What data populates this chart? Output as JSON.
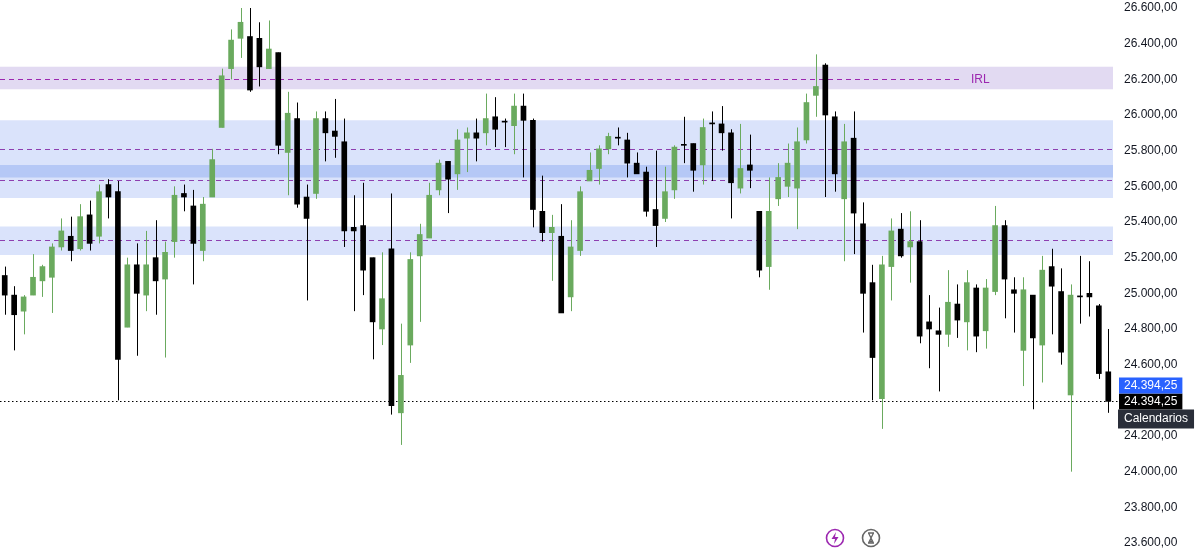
{
  "chart_data": {
    "type": "candlestick",
    "categories": [
      null,
      null,
      null,
      null,
      null,
      null,
      null,
      null,
      null,
      null,
      null,
      null,
      null,
      null,
      null,
      null,
      null,
      null,
      null,
      null,
      null,
      null,
      null,
      null,
      null,
      null,
      null,
      null,
      null,
      null,
      null,
      null,
      null,
      null,
      null,
      null,
      null,
      null,
      null,
      null,
      null,
      null,
      null,
      null,
      null,
      null,
      null,
      null,
      null,
      null,
      null,
      null,
      null,
      null,
      null,
      null,
      null,
      null,
      null,
      null,
      null,
      null,
      null,
      null,
      null,
      null,
      null,
      null,
      null,
      null,
      null,
      null,
      null,
      null,
      null,
      null,
      null,
      null,
      null,
      null,
      null,
      null,
      null,
      null,
      null,
      null,
      null,
      null,
      null,
      null,
      null,
      null,
      null,
      null,
      null,
      null,
      null,
      null,
      null,
      null,
      null,
      null,
      null,
      null,
      null,
      null,
      null,
      null,
      null,
      null,
      null,
      null,
      null,
      null,
      null,
      null,
      null,
      null
    ],
    "ohlc": [
      [
        25100,
        25150,
        24880,
        24990
      ],
      [
        24990,
        25040,
        24680,
        24880
      ],
      [
        24900,
        24990,
        24770,
        24980
      ],
      [
        24990,
        25220,
        24990,
        25090
      ],
      [
        25070,
        25160,
        24980,
        25150
      ],
      [
        25090,
        25280,
        24890,
        25260
      ],
      [
        25260,
        25420,
        25240,
        25350
      ],
      [
        25320,
        25430,
        25180,
        25240
      ],
      [
        25250,
        25500,
        25240,
        25430
      ],
      [
        25440,
        25520,
        25240,
        25280
      ],
      [
        25320,
        25610,
        25280,
        25570
      ],
      [
        25610,
        25640,
        25420,
        25540
      ],
      [
        25570,
        25630,
        24400,
        24630
      ],
      [
        24810,
        25200,
        24810,
        25160
      ],
      [
        25160,
        25280,
        24650,
        25000
      ],
      [
        24990,
        25350,
        24900,
        25160
      ],
      [
        25200,
        25410,
        24880,
        25070
      ],
      [
        25080,
        25290,
        24640,
        25230
      ],
      [
        25290,
        25600,
        25200,
        25550
      ],
      [
        25560,
        25610,
        25460,
        25540
      ],
      [
        25490,
        25580,
        25050,
        25280
      ],
      [
        25240,
        25540,
        25180,
        25500
      ],
      [
        25540,
        25810,
        25540,
        25750
      ],
      [
        25930,
        26260,
        25930,
        26220
      ],
      [
        26260,
        26480,
        26200,
        26420
      ],
      [
        26430,
        26600,
        26320,
        26520
      ],
      [
        26440,
        26600,
        26130,
        26140
      ],
      [
        26430,
        26520,
        26160,
        26270
      ],
      [
        26260,
        26530,
        26260,
        26370
      ],
      [
        26350,
        26350,
        25780,
        25830
      ],
      [
        25790,
        26130,
        25550,
        26010
      ],
      [
        25980,
        26070,
        25480,
        25500
      ],
      [
        25540,
        25610,
        24960,
        25420
      ],
      [
        25560,
        26020,
        25530,
        25980
      ],
      [
        25980,
        26020,
        25740,
        25900
      ],
      [
        25910,
        26090,
        25760,
        25880
      ],
      [
        25850,
        25980,
        25260,
        25350
      ],
      [
        25370,
        25550,
        24900,
        25350
      ],
      [
        25380,
        25620,
        24990,
        25130
      ],
      [
        25200,
        25200,
        24630,
        24840
      ],
      [
        24800,
        25230,
        24710,
        24970
      ],
      [
        25250,
        25560,
        24320,
        24370
      ],
      [
        24330,
        24830,
        24150,
        24540
      ],
      [
        24710,
        25230,
        24610,
        25190
      ],
      [
        25210,
        25390,
        24840,
        25330
      ],
      [
        25310,
        25620,
        25310,
        25550
      ],
      [
        25580,
        25750,
        25550,
        25730
      ],
      [
        25740,
        25740,
        25450,
        25640
      ],
      [
        25670,
        25920,
        25580,
        25860
      ],
      [
        25870,
        25930,
        25680,
        25900
      ],
      [
        25900,
        25980,
        25740,
        25870
      ],
      [
        25900,
        26120,
        25830,
        25980
      ],
      [
        25990,
        26100,
        25820,
        25920
      ],
      [
        25960,
        25980,
        25820,
        25960
      ],
      [
        25940,
        26120,
        25780,
        26050
      ],
      [
        26050,
        26120,
        25650,
        25970
      ],
      [
        25970,
        25980,
        25370,
        25470
      ],
      [
        25460,
        25660,
        25290,
        25340
      ],
      [
        25340,
        25440,
        25070,
        25370
      ],
      [
        25320,
        25500,
        24890,
        24890
      ],
      [
        24980,
        25410,
        24900,
        25260
      ],
      [
        25240,
        25600,
        25210,
        25570
      ],
      [
        25630,
        25790,
        25630,
        25690
      ],
      [
        25700,
        25830,
        25610,
        25810
      ],
      [
        25810,
        25900,
        25780,
        25880
      ],
      [
        25870,
        25930,
        25830,
        25870
      ],
      [
        25860,
        25900,
        25650,
        25730
      ],
      [
        25730,
        25790,
        25670,
        25670
      ],
      [
        25680,
        25710,
        25430,
        25460
      ],
      [
        25470,
        25800,
        25260,
        25380
      ],
      [
        25420,
        25710,
        25400,
        25570
      ],
      [
        25580,
        25830,
        25530,
        25820
      ],
      [
        25830,
        25990,
        25730,
        25830
      ],
      [
        25840,
        25840,
        25570,
        25690
      ],
      [
        25720,
        25980,
        25610,
        25930
      ],
      [
        25950,
        26020,
        25630,
        25950
      ],
      [
        25950,
        26050,
        25800,
        25900
      ],
      [
        25900,
        25920,
        25420,
        25620
      ],
      [
        25590,
        25950,
        25560,
        25700
      ],
      [
        25720,
        25890,
        25590,
        25690
      ],
      [
        25460,
        25460,
        25090,
        25130
      ],
      [
        25150,
        25650,
        25020,
        25460
      ],
      [
        25530,
        25730,
        25490,
        25650
      ],
      [
        25600,
        25840,
        25540,
        25730
      ],
      [
        25590,
        25930,
        25360,
        25850
      ],
      [
        25860,
        26120,
        25840,
        26070
      ],
      [
        26110,
        26340,
        25990,
        26160
      ],
      [
        26280,
        26290,
        25540,
        26000
      ],
      [
        25990,
        26020,
        25570,
        25670
      ],
      [
        25530,
        25950,
        25180,
        25850
      ],
      [
        25870,
        26020,
        25220,
        25450
      ],
      [
        25390,
        25510,
        24780,
        25000
      ],
      [
        25060,
        25160,
        24400,
        24640
      ],
      [
        24410,
        25210,
        24240,
        25160
      ],
      [
        25150,
        25420,
        24960,
        25350
      ],
      [
        25360,
        25450,
        25200,
        25210
      ],
      [
        25260,
        25460,
        25060,
        25290
      ],
      [
        25290,
        25410,
        24720,
        24760
      ],
      [
        24840,
        24990,
        24580,
        24800
      ],
      [
        24790,
        24920,
        24450,
        24770
      ],
      [
        24770,
        25130,
        24700,
        24950
      ],
      [
        24940,
        25050,
        24750,
        24850
      ],
      [
        24840,
        25130,
        24680,
        25060
      ],
      [
        25030,
        25050,
        24670,
        24760
      ],
      [
        24790,
        25080,
        24690,
        25030
      ],
      [
        25010,
        25490,
        24990,
        25380
      ],
      [
        25380,
        25410,
        24860,
        25080
      ],
      [
        25020,
        25090,
        24780,
        25000
      ],
      [
        24680,
        25090,
        24480,
        25020
      ],
      [
        24990,
        24990,
        24350,
        24750
      ],
      [
        24710,
        25210,
        24500,
        25130
      ],
      [
        25150,
        25250,
        24770,
        25040
      ],
      [
        25010,
        25140,
        24600,
        24670
      ],
      [
        24430,
        25050,
        24000,
        24990
      ],
      [
        24980,
        25210,
        24830,
        24980
      ],
      [
        25000,
        25180,
        24870,
        24980
      ],
      [
        24930,
        24940,
        24520,
        24550
      ],
      [
        24560,
        24800,
        24330,
        24394.25
      ]
    ],
    "colors": [
      "#000000",
      "#000000",
      "#6aaa5e",
      "#6aaa5e",
      "#6aaa5e",
      "#6aaa5e",
      "#6aaa5e",
      "#000000",
      "#6aaa5e",
      "#000000",
      "#6aaa5e",
      "#000000",
      "#000000",
      "#6aaa5e",
      "#000000",
      "#6aaa5e",
      "#000000",
      "#6aaa5e",
      "#6aaa5e",
      "#000000",
      "#000000",
      "#6aaa5e",
      "#6aaa5e",
      "#6aaa5e",
      "#6aaa5e",
      "#6aaa5e",
      "#000000",
      "#000000",
      "#6aaa5e",
      "#000000",
      "#6aaa5e",
      "#000000",
      "#000000",
      "#6aaa5e",
      "#000000",
      "#000000",
      "#000000",
      "#000000",
      "#000000",
      "#000000",
      "#6aaa5e",
      "#000000",
      "#6aaa5e",
      "#6aaa5e",
      "#6aaa5e",
      "#6aaa5e",
      "#6aaa5e",
      "#000000",
      "#6aaa5e",
      "#6aaa5e",
      "#000000",
      "#6aaa5e",
      "#000000",
      "#000000",
      "#6aaa5e",
      "#000000",
      "#000000",
      "#000000",
      "#6aaa5e",
      "#000000",
      "#6aaa5e",
      "#6aaa5e",
      "#6aaa5e",
      "#6aaa5e",
      "#6aaa5e",
      "#000000",
      "#000000",
      "#000000",
      "#000000",
      "#000000",
      "#6aaa5e",
      "#6aaa5e",
      "#000000",
      "#000000",
      "#6aaa5e",
      "#000000",
      "#000000",
      "#000000",
      "#6aaa5e",
      "#000000",
      "#000000",
      "#6aaa5e",
      "#6aaa5e",
      "#6aaa5e",
      "#6aaa5e",
      "#6aaa5e",
      "#6aaa5e",
      "#000000",
      "#000000",
      "#6aaa5e",
      "#000000",
      "#000000",
      "#000000",
      "#6aaa5e",
      "#6aaa5e",
      "#000000",
      "#6aaa5e",
      "#000000",
      "#000000",
      "#000000",
      "#6aaa5e",
      "#000000",
      "#6aaa5e",
      "#000000",
      "#6aaa5e",
      "#6aaa5e",
      "#000000",
      "#000000",
      "#6aaa5e",
      "#000000",
      "#6aaa5e",
      "#000000",
      "#000000",
      "#6aaa5e",
      "#000000",
      "#000000",
      "#000000",
      "#000000"
    ],
    "ylim": [
      23600,
      26600
    ],
    "yticks": [
      {
        "value": 23600,
        "label": "23.600,00"
      },
      {
        "value": 23800,
        "label": "23.800,00"
      },
      {
        "value": 24000,
        "label": "24.000,00"
      },
      {
        "value": 24200,
        "label": "24.200,00"
      },
      {
        "value": 24600,
        "label": "24.600,00"
      },
      {
        "value": 24800,
        "label": "24.800,00"
      },
      {
        "value": 25000,
        "label": "25.000,00"
      },
      {
        "value": 25200,
        "label": "25.200,00"
      },
      {
        "value": 25400,
        "label": "25.400,00"
      },
      {
        "value": 25600,
        "label": "25.600,00"
      },
      {
        "value": 25800,
        "label": "25.800,00"
      },
      {
        "value": 26000,
        "label": "26.000,00"
      },
      {
        "value": 26200,
        "label": "26.200,00"
      },
      {
        "value": 26400,
        "label": "26.400,00"
      },
      {
        "value": 26600,
        "label": "26.600,00"
      }
    ],
    "tick_labels": "y",
    "bands": [
      {
        "axis": "y",
        "from": 26145,
        "to": 26270,
        "color": "#ddd3f0"
      },
      {
        "axis": "y",
        "from": 25535,
        "to": 25970,
        "color": "#d3defa"
      },
      {
        "axis": "y",
        "from": 25650,
        "to": 25720,
        "color": "#aec3f4"
      },
      {
        "axis": "y",
        "from": 25215,
        "to": 25375,
        "color": "#d3defa"
      }
    ],
    "ref_lines": [
      {
        "axis": "y",
        "value": 26200,
        "label": "IRL",
        "color": "#9c27b0",
        "line_style": "dashed"
      },
      {
        "axis": "y",
        "value": 25810,
        "color": "#8e3fb0",
        "line_style": "dashed"
      },
      {
        "axis": "y",
        "value": 25635,
        "color": "#8e3fb0",
        "line_style": "dashed"
      },
      {
        "axis": "y",
        "value": 25300,
        "color": "#8e3fb0",
        "line_style": "dashed"
      },
      {
        "axis": "y",
        "value": 24394.25,
        "label": "24.394,25",
        "color": "#000000",
        "line_style": "dotted"
      }
    ],
    "annotations": [
      "24.394,25",
      "Calendarios"
    ]
  }
}
